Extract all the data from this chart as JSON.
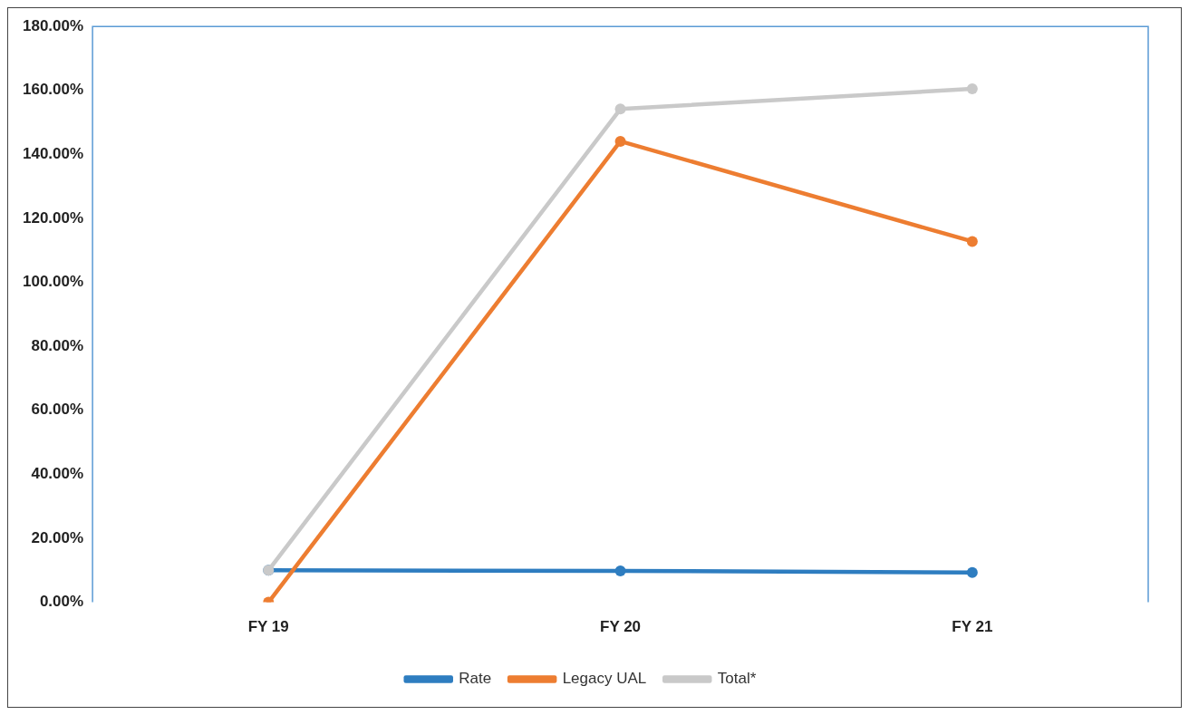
{
  "chart_data": {
    "type": "line",
    "categories": [
      "FY 19",
      "FY 20",
      "FY 21"
    ],
    "series": [
      {
        "name": "Rate",
        "color": "#2e7dc0",
        "values": [
          10,
          9.8,
          9.3
        ]
      },
      {
        "name": "Legacy UAL",
        "color": "#ed7d31",
        "values": [
          0,
          144.1,
          112.8
        ]
      },
      {
        "name": "Total*",
        "color": "#c9c9c9",
        "values": [
          10,
          154.2,
          160.5
        ]
      }
    ],
    "ylim": [
      0,
      180
    ],
    "yticks": [
      {
        "value": 0,
        "label": "0.00%"
      },
      {
        "value": 20,
        "label": "20.00%"
      },
      {
        "value": 40,
        "label": "40.00%"
      },
      {
        "value": 60,
        "label": "60.00%"
      },
      {
        "value": 80,
        "label": "80.00%"
      },
      {
        "value": 100,
        "label": "100.00%"
      },
      {
        "value": 120,
        "label": "120.00%"
      },
      {
        "value": 140,
        "label": "140.00%"
      },
      {
        "value": 160,
        "label": "160.00%"
      },
      {
        "value": 180,
        "label": "180.00%"
      }
    ],
    "grid": false,
    "legend": "bottom",
    "marker": "circle",
    "line_style": "solid"
  }
}
